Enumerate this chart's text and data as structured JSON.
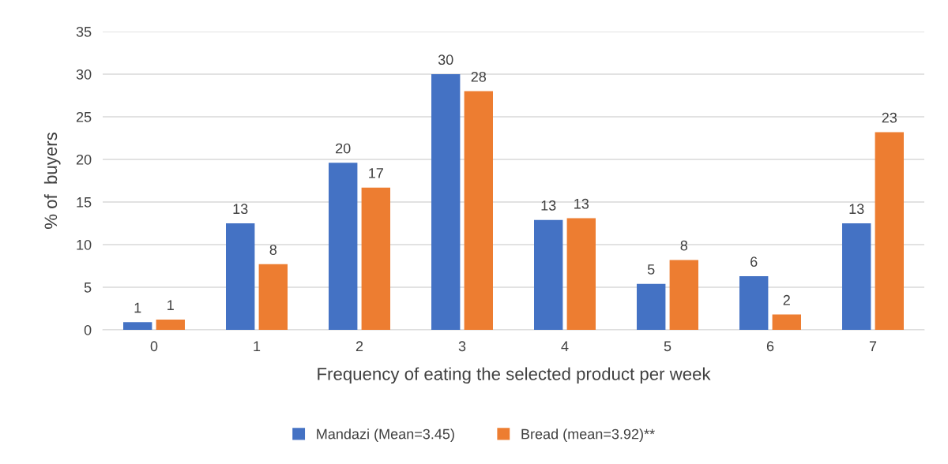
{
  "chart_data": {
    "type": "bar",
    "categories": [
      "0",
      "1",
      "2",
      "3",
      "4",
      "5",
      "6",
      "7"
    ],
    "xlabel": "Frequency of eating the selected product per week",
    "ylabel": "% of  buyers",
    "ylim": [
      0,
      35
    ],
    "yticks": [
      0,
      5,
      10,
      15,
      20,
      25,
      30,
      35
    ],
    "grid": "y",
    "legend": "bottom",
    "series": [
      {
        "name": "Mandazi (Mean=3.45)",
        "color": "#4472c4",
        "values": [
          0.9,
          12.5,
          19.6,
          30.0,
          12.9,
          5.4,
          6.3,
          12.5
        ],
        "value_labels": [
          "1",
          "13",
          "20",
          "30",
          "13",
          "5",
          "6",
          "13"
        ]
      },
      {
        "name": "Bread (mean=3.92)**",
        "color": "#ed7d31",
        "values": [
          1.2,
          7.7,
          16.7,
          28.0,
          13.1,
          8.2,
          1.8,
          23.2
        ],
        "value_labels": [
          "1",
          "8",
          "17",
          "28",
          "13",
          "8",
          "2",
          "23"
        ]
      }
    ]
  }
}
